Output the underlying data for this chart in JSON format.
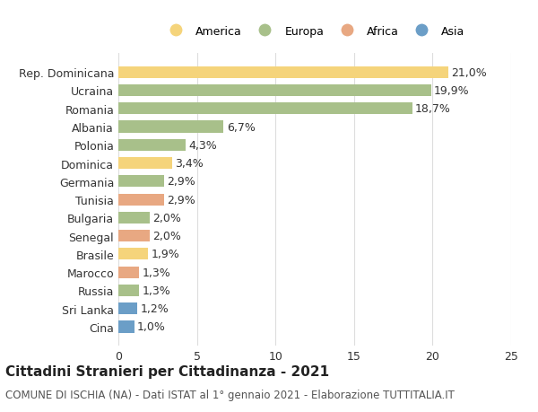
{
  "countries": [
    "Rep. Dominicana",
    "Ucraina",
    "Romania",
    "Albania",
    "Polonia",
    "Dominica",
    "Germania",
    "Tunisia",
    "Bulgaria",
    "Senegal",
    "Brasile",
    "Marocco",
    "Russia",
    "Sri Lanka",
    "Cina"
  ],
  "values": [
    21.0,
    19.9,
    18.7,
    6.7,
    4.3,
    3.4,
    2.9,
    2.9,
    2.0,
    2.0,
    1.9,
    1.3,
    1.3,
    1.2,
    1.0
  ],
  "labels": [
    "21,0%",
    "19,9%",
    "18,7%",
    "6,7%",
    "4,3%",
    "3,4%",
    "2,9%",
    "2,9%",
    "2,0%",
    "2,0%",
    "1,9%",
    "1,3%",
    "1,3%",
    "1,2%",
    "1,0%"
  ],
  "colors": [
    "#F5D47B",
    "#A8C08A",
    "#A8C08A",
    "#A8C08A",
    "#A8C08A",
    "#F5D47B",
    "#A8C08A",
    "#E8A882",
    "#A8C08A",
    "#E8A882",
    "#F5D47B",
    "#E8A882",
    "#A8C08A",
    "#6B9EC7",
    "#6B9EC7"
  ],
  "legend_labels": [
    "America",
    "Europa",
    "Africa",
    "Asia"
  ],
  "legend_colors": [
    "#F5D47B",
    "#A8C08A",
    "#E8A882",
    "#6B9EC7"
  ],
  "xlim": [
    0,
    25
  ],
  "xticks": [
    0,
    5,
    10,
    15,
    20,
    25
  ],
  "title": "Cittadini Stranieri per Cittadinanza - 2021",
  "subtitle": "COMUNE DI ISCHIA (NA) - Dati ISTAT al 1° gennaio 2021 - Elaborazione TUTTITALIA.IT",
  "bg_color": "#FFFFFF",
  "grid_color": "#DDDDDD",
  "bar_height": 0.65,
  "label_fontsize": 9,
  "title_fontsize": 11,
  "subtitle_fontsize": 8.5
}
